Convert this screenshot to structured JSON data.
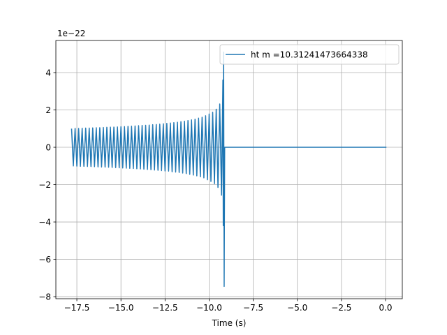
{
  "chart_data": {
    "type": "line",
    "x_label": "Time (s)",
    "y_offset_label": "1e−22",
    "x": [
      -17.8,
      -17.7,
      -17.6,
      -17.5,
      -17.4,
      -17.3,
      -17.2,
      -17.1,
      -17.0,
      -16.9,
      -16.8,
      -16.7,
      -16.6,
      -16.5,
      -16.4,
      -16.3,
      -16.2,
      -16.1,
      -16.0,
      -15.9,
      -15.8,
      -15.7,
      -15.6,
      -15.5,
      -15.4,
      -15.3,
      -15.2,
      -15.1,
      -15.0,
      -14.9,
      -14.8,
      -14.7,
      -14.6,
      -14.5,
      -14.4,
      -14.3,
      -14.2,
      -14.1,
      -14.0,
      -13.9,
      -13.8,
      -13.7,
      -13.6,
      -13.5,
      -13.4,
      -13.3,
      -13.2,
      -13.1,
      -13.0,
      -12.9,
      -12.8,
      -12.7,
      -12.6,
      -12.5,
      -12.4,
      -12.3,
      -12.2,
      -12.1,
      -12.0,
      -11.9,
      -11.8,
      -11.7,
      -11.6,
      -11.5,
      -11.4,
      -11.3,
      -11.2,
      -11.1,
      -11.0,
      -10.9,
      -10.8,
      -10.7,
      -10.6,
      -10.5,
      -10.4,
      -10.3,
      -10.2,
      -10.1,
      -10.0,
      -9.9,
      -9.8,
      -9.7,
      -9.6,
      -9.5,
      -9.4,
      -9.3,
      -9.22,
      -9.2,
      -9.18,
      -9.15,
      -9.12,
      0.05
    ],
    "series": [
      {
        "name": "ht m =10.31241473664338",
        "color": "#1f77b4",
        "values": [
          1.0,
          -1.0,
          1.01,
          -1.01,
          1.01,
          -1.02,
          1.02,
          -1.02,
          1.03,
          -1.03,
          1.03,
          -1.03,
          1.04,
          -1.04,
          1.05,
          -1.05,
          1.05,
          -1.06,
          1.06,
          -1.06,
          1.07,
          -1.07,
          1.08,
          -1.08,
          1.08,
          -1.09,
          1.09,
          -1.1,
          1.1,
          -1.11,
          1.11,
          -1.12,
          1.12,
          -1.13,
          1.13,
          -1.14,
          1.14,
          -1.15,
          1.16,
          -1.16,
          1.17,
          -1.17,
          1.18,
          -1.19,
          1.19,
          -1.2,
          1.21,
          -1.22,
          1.22,
          -1.23,
          1.24,
          -1.25,
          1.26,
          -1.27,
          1.28,
          -1.28,
          1.3,
          -1.31,
          1.32,
          -1.33,
          1.34,
          -1.35,
          1.37,
          -1.38,
          1.4,
          -1.41,
          1.43,
          -1.45,
          1.47,
          -1.49,
          1.5,
          -1.53,
          1.56,
          -1.58,
          1.61,
          -1.64,
          1.69,
          -1.74,
          1.78,
          -1.83,
          1.88,
          -1.95,
          2.04,
          -2.15,
          2.32,
          -2.57,
          3.6,
          -4.2,
          5.1,
          -7.45,
          0,
          0
        ]
      }
    ],
    "xlim": [
      -18.69,
      0.95
    ],
    "ylim": [
      -8.11,
      5.72
    ],
    "xticks": [
      {
        "value": -17.5,
        "label": "−17.5"
      },
      {
        "value": -15.0,
        "label": "−15.0"
      },
      {
        "value": -12.5,
        "label": "−12.5"
      },
      {
        "value": -10.0,
        "label": "−10.0"
      },
      {
        "value": -7.5,
        "label": "−7.5"
      },
      {
        "value": -5.0,
        "label": "−5.0"
      },
      {
        "value": -2.5,
        "label": "−2.5"
      },
      {
        "value": 0,
        "label": "0.0"
      }
    ],
    "yticks": [
      {
        "value": -8,
        "label": "−8"
      },
      {
        "value": -6,
        "label": "−6"
      },
      {
        "value": -4,
        "label": "−4"
      },
      {
        "value": -2,
        "label": "−2"
      },
      0,
      2,
      4
    ],
    "grid": true,
    "legend": "upper right"
  }
}
